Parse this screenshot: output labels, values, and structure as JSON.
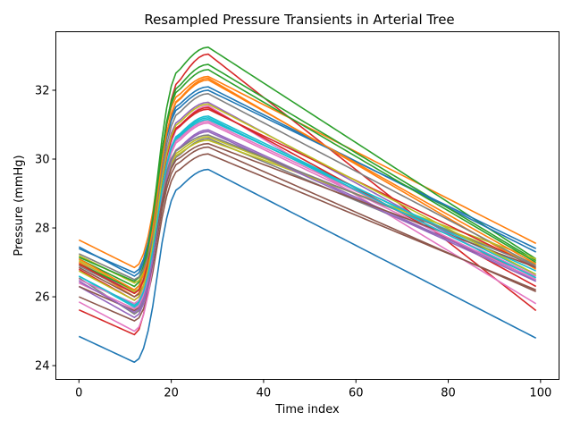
{
  "chart_data": {
    "type": "line",
    "title": "Resampled Pressure Transients in Arterial Tree",
    "xlabel": "Time index",
    "ylabel": "Pressure (mmHg)",
    "xlim": [
      -5,
      104
    ],
    "ylim": [
      23.6,
      33.7
    ],
    "xticks": [
      0,
      20,
      40,
      60,
      80,
      100
    ],
    "yticks": [
      24,
      26,
      28,
      30,
      32
    ],
    "grid": false,
    "legend": "none",
    "n_points": 100,
    "shape": {
      "trough_index": 12,
      "rise_end_index": 22,
      "peak_index": 28
    },
    "colors": [
      "#1f77b4",
      "#ff7f0e",
      "#2ca02c",
      "#d62728",
      "#9467bd",
      "#8c564b",
      "#e377c2",
      "#7f7f7f",
      "#bcbd22",
      "#17becf"
    ],
    "series": [
      {
        "start": 24.85,
        "trough": 24.1,
        "peak": 29.7,
        "end": 24.8
      },
      {
        "start": 27.65,
        "trough": 26.85,
        "peak": 32.4,
        "end": 27.55
      },
      {
        "start": 27.1,
        "trough": 26.3,
        "peak": 33.25,
        "end": 27.1
      },
      {
        "start": 25.62,
        "trough": 24.9,
        "peak": 33.05,
        "end": 25.6
      },
      {
        "start": 27.0,
        "trough": 26.1,
        "peak": 31.65,
        "end": 26.45
      },
      {
        "start": 26.0,
        "trough": 25.3,
        "peak": 30.15,
        "end": 26.2
      },
      {
        "start": 25.85,
        "trough": 25.0,
        "peak": 31.55,
        "end": 25.8
      },
      {
        "start": 26.55,
        "trough": 25.5,
        "peak": 30.6,
        "end": 26.6
      },
      {
        "start": 27.05,
        "trough": 26.15,
        "peak": 30.65,
        "end": 26.95
      },
      {
        "start": 26.6,
        "trough": 25.7,
        "peak": 31.25,
        "end": 26.65
      },
      {
        "start": 27.4,
        "trough": 26.7,
        "peak": 32.1,
        "end": 27.3
      },
      {
        "start": 27.0,
        "trough": 26.0,
        "peak": 32.35,
        "end": 26.8
      },
      {
        "start": 26.95,
        "trough": 26.2,
        "peak": 32.75,
        "end": 27.05
      },
      {
        "start": 26.8,
        "trough": 25.9,
        "peak": 31.5,
        "end": 26.3
      },
      {
        "start": 26.3,
        "trough": 25.4,
        "peak": 30.85,
        "end": 26.5
      },
      {
        "start": 26.3,
        "trough": 25.6,
        "peak": 30.35,
        "end": 26.15
      },
      {
        "start": 26.4,
        "trough": 25.65,
        "peak": 31.05,
        "end": 26.5
      },
      {
        "start": 26.9,
        "trough": 26.1,
        "peak": 31.9,
        "end": 26.9
      },
      {
        "start": 27.2,
        "trough": 26.4,
        "peak": 30.55,
        "end": 27.1
      },
      {
        "start": 26.5,
        "trough": 25.8,
        "peak": 31.15,
        "end": 26.75
      },
      {
        "start": 27.45,
        "trough": 26.6,
        "peak": 32.0,
        "end": 27.4
      },
      {
        "start": 27.1,
        "trough": 26.2,
        "peak": 32.3,
        "end": 26.95
      },
      {
        "start": 27.15,
        "trough": 26.45,
        "peak": 32.6,
        "end": 27.0
      },
      {
        "start": 26.95,
        "trough": 26.1,
        "peak": 31.45,
        "end": 26.85
      },
      {
        "start": 26.45,
        "trough": 25.55,
        "peak": 30.8,
        "end": 26.45
      },
      {
        "start": 26.85,
        "trough": 26.0,
        "peak": 30.45,
        "end": 26.85
      },
      {
        "start": 26.5,
        "trough": 25.8,
        "peak": 31.1,
        "end": 26.6
      },
      {
        "start": 27.25,
        "trough": 26.5,
        "peak": 30.7,
        "end": 26.9
      },
      {
        "start": 26.75,
        "trough": 25.9,
        "peak": 31.6,
        "end": 26.65
      },
      {
        "start": 26.6,
        "trough": 25.75,
        "peak": 31.2,
        "end": 26.55
      }
    ]
  }
}
